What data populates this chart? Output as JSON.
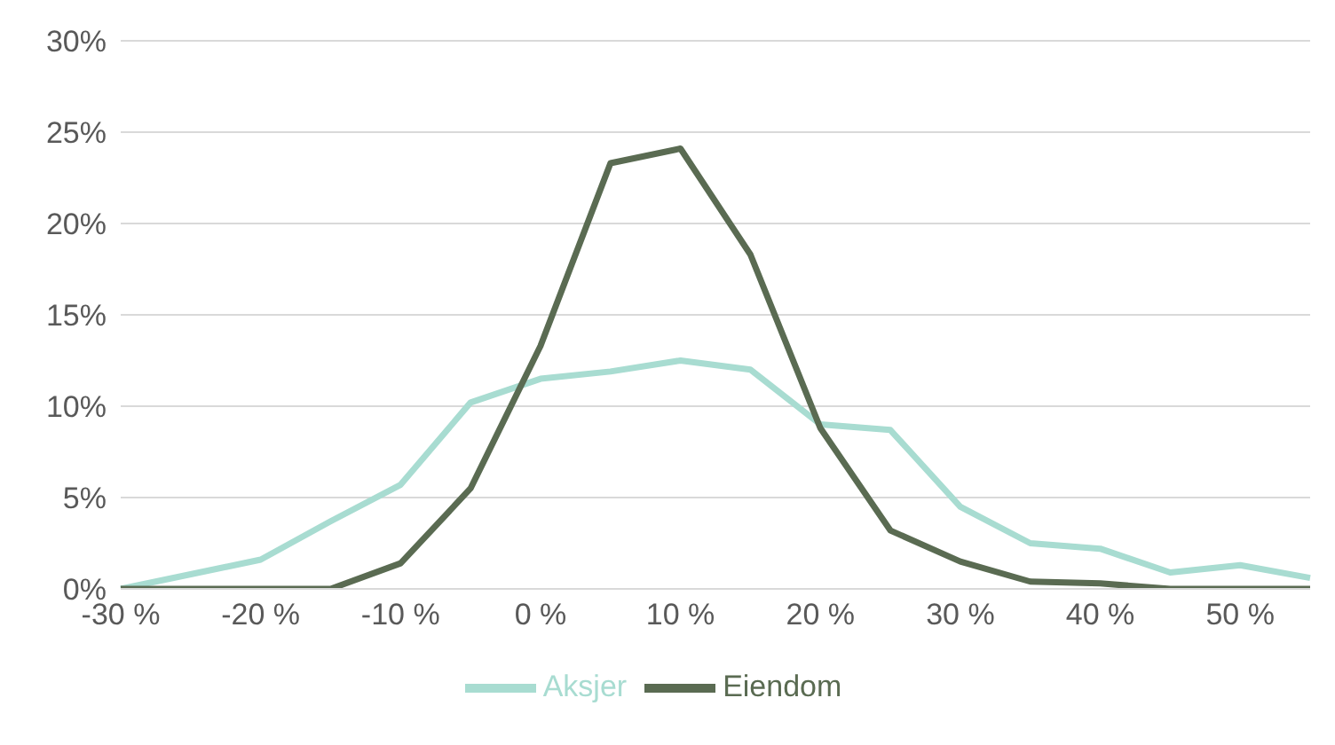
{
  "chart_data": {
    "type": "line",
    "categories": [
      "-30 %",
      null,
      "-20 %",
      null,
      "-10 %",
      null,
      "0 %",
      null,
      "10 %",
      null,
      "20 %",
      null,
      "30 %",
      null,
      "40 %",
      null,
      "50 %",
      null
    ],
    "series": [
      {
        "name": "Aksjer",
        "color": "#a8dcd1",
        "values": [
          0,
          0.8,
          1.6,
          3.7,
          5.7,
          10.2,
          11.5,
          11.9,
          12.5,
          12.0,
          9.0,
          8.7,
          4.5,
          2.5,
          2.2,
          0.9,
          1.3,
          0.6
        ]
      },
      {
        "name": "Eiendom",
        "color": "#5a6b52",
        "values": [
          0,
          0,
          0,
          0,
          1.4,
          5.5,
          13.3,
          23.3,
          24.1,
          18.3,
          8.8,
          3.2,
          1.5,
          0.4,
          0.3,
          0,
          0,
          0
        ]
      }
    ],
    "ylim": [
      0,
      30
    ],
    "yticks": [
      {
        "value": 0,
        "label": "0%"
      },
      {
        "value": 5,
        "label": "5%"
      },
      {
        "value": 10,
        "label": "10%"
      },
      {
        "value": 15,
        "label": "15%"
      },
      {
        "value": 20,
        "label": "20%"
      },
      {
        "value": 25,
        "label": "25%"
      },
      {
        "value": 30,
        "label": "30%"
      }
    ],
    "grid": "y",
    "legend": "bottom",
    "marker": "none",
    "line_style": "solid"
  }
}
